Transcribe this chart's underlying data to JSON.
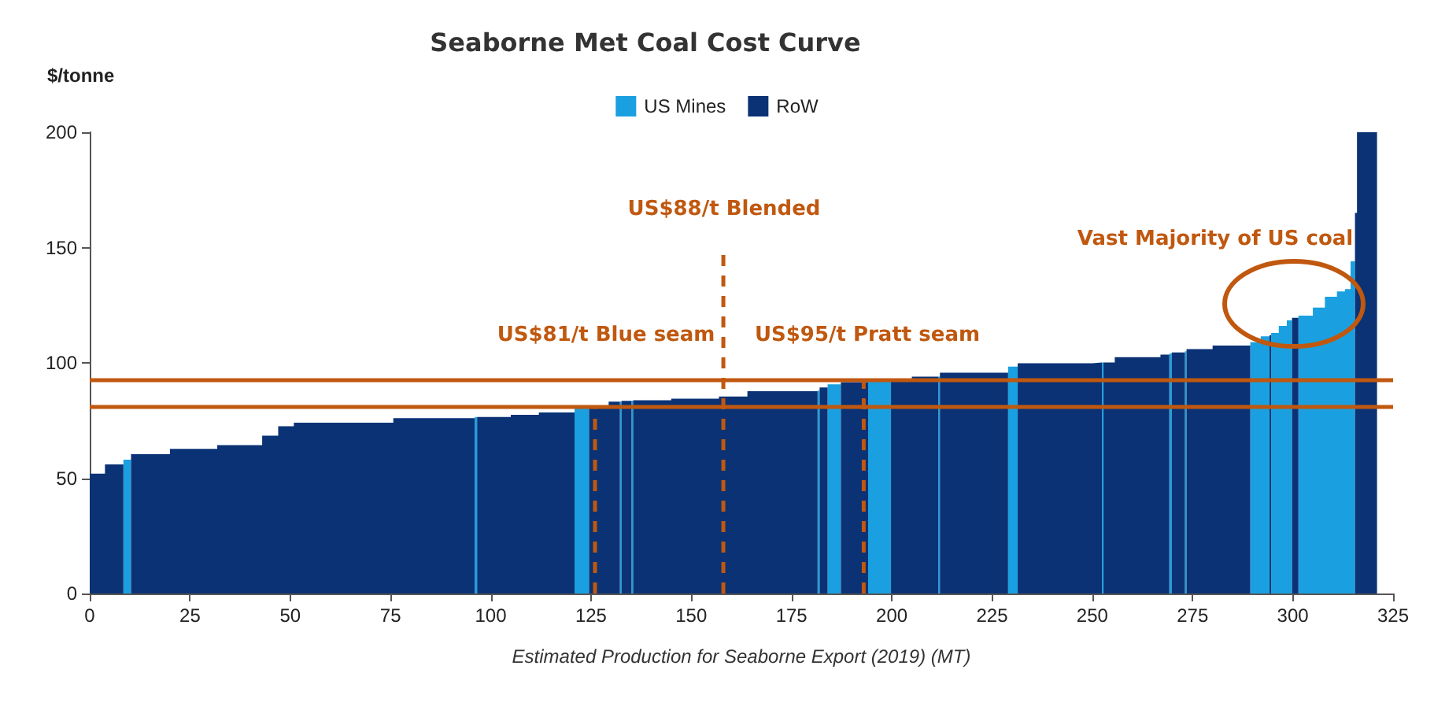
{
  "chart_data": {
    "type": "area",
    "title": "Seaborne Met Coal Cost Curve",
    "xlabel": "Estimated Production for Seaborne Export (2019) (MT)",
    "ylabel": "$/tonne",
    "xlim": [
      0,
      325
    ],
    "xticks": [
      0,
      25,
      50,
      75,
      100,
      125,
      150,
      175,
      200,
      225,
      250,
      275,
      300,
      325
    ],
    "ylim": [
      0,
      200
    ],
    "yticks": [
      0,
      50,
      100,
      150,
      200
    ],
    "grid": false,
    "legend": "top",
    "series": [
      {
        "name": "US Mines",
        "color": "#1aa0e0",
        "x": [
          8.4,
          10.3
        ],
        "values": [
          58,
          58
        ]
      },
      {
        "color": "#1aa0e0",
        "x": [
          96,
          96.6
        ],
        "values": [
          76.5,
          76.5
        ]
      },
      {
        "color": "#1aa0e0",
        "x": [
          120.9,
          124.5
        ],
        "values": [
          80.2,
          80.2
        ]
      },
      {
        "color": "#1aa0e0",
        "x": [
          132.2,
          132.6
        ],
        "values": [
          83.2,
          83.2
        ]
      },
      {
        "color": "#1aa0e0",
        "x": [
          135.1,
          135.5
        ],
        "values": [
          83.6,
          83.6
        ]
      },
      {
        "color": "#1aa0e0",
        "x": [
          181.5,
          182
        ],
        "values": [
          88,
          88
        ]
      },
      {
        "color": "#1aa0e0",
        "x": [
          184,
          187.3
        ],
        "values": [
          90.7,
          90.7
        ]
      },
      {
        "color": "#1aa0e0",
        "x": [
          194.1,
          199.8
        ],
        "values": [
          92.7,
          92.7
        ]
      },
      {
        "color": "#1aa0e0",
        "x": [
          211.6,
          212
        ],
        "values": [
          94,
          94
        ]
      },
      {
        "color": "#1aa0e0",
        "x": [
          229,
          231.4
        ],
        "values": [
          98.4,
          98.4
        ]
      },
      {
        "color": "#1aa0e0",
        "x": [
          252.4,
          252.8
        ],
        "values": [
          100.2,
          100.2
        ]
      },
      {
        "color": "#1aa0e0",
        "x": [
          269.2,
          269.8
        ],
        "values": [
          104,
          104
        ]
      },
      {
        "color": "#1aa0e0",
        "x": [
          273.1,
          273.5
        ],
        "values": [
          105,
          105
        ]
      },
      {
        "color": "#1aa0e0",
        "x": [
          289.4,
          292,
          294.2
        ],
        "values": [
          109,
          111.5,
          111.5
        ]
      },
      {
        "color": "#1aa0e0",
        "x": [
          294.6,
          296.5,
          298.5,
          299.8
        ],
        "values": [
          113,
          116,
          118.4,
          118.4
        ]
      },
      {
        "color": "#1aa0e0",
        "x": [
          301.4,
          305,
          308,
          311,
          313,
          314.4,
          315.5
        ],
        "values": [
          120.5,
          124,
          128.7,
          131,
          132,
          144,
          144
        ]
      },
      {
        "name": "RoW",
        "color": "#0a3275",
        "x": [
          0,
          3.8,
          8.4
        ],
        "values": [
          52,
          56,
          56
        ]
      },
      {
        "color": "#0a3275",
        "x": [
          10.3,
          20,
          31.8,
          43,
          47,
          50.9,
          75.7,
          96
        ],
        "values": [
          60.4,
          62.7,
          64.3,
          68.4,
          72.5,
          74.1,
          76,
          76
        ]
      },
      {
        "color": "#0a3275",
        "x": [
          96.6,
          105,
          112,
          120.9
        ],
        "values": [
          76.5,
          77.5,
          78.5,
          78.5
        ]
      },
      {
        "color": "#0a3275",
        "x": [
          124.5,
          129.4,
          132.2
        ],
        "values": [
          81,
          83.2,
          83.2
        ]
      },
      {
        "color": "#0a3275",
        "x": [
          132.6,
          135.1
        ],
        "values": [
          83.5,
          83.5
        ]
      },
      {
        "color": "#0a3275",
        "x": [
          135.5,
          145,
          156.9,
          164,
          181.5
        ],
        "values": [
          83.8,
          84.5,
          85.4,
          87.7,
          87.7
        ]
      },
      {
        "color": "#0a3275",
        "x": [
          182,
          184
        ],
        "values": [
          89.3,
          89.3
        ]
      },
      {
        "color": "#0a3275",
        "x": [
          187.3,
          194.1
        ],
        "values": [
          91.6,
          91.6
        ]
      },
      {
        "color": "#0a3275",
        "x": [
          199.8,
          205,
          211.6
        ],
        "values": [
          92.7,
          94,
          94
        ]
      },
      {
        "color": "#0a3275",
        "x": [
          212,
          229
        ],
        "values": [
          95.7,
          95.7
        ]
      },
      {
        "color": "#0a3275",
        "x": [
          231.4,
          250,
          252.4
        ],
        "values": [
          99.8,
          100.2,
          100.2
        ]
      },
      {
        "color": "#0a3275",
        "x": [
          252.8,
          255.6,
          267,
          269.2
        ],
        "values": [
          100.2,
          102.5,
          103.6,
          103.6
        ]
      },
      {
        "color": "#0a3275",
        "x": [
          269.8,
          273.1
        ],
        "values": [
          104.5,
          104.5
        ]
      },
      {
        "color": "#0a3275",
        "x": [
          273.5,
          280,
          289.4
        ],
        "values": [
          106,
          107.5,
          107.5
        ]
      },
      {
        "color": "#0a3275",
        "x": [
          294.2,
          294.6
        ],
        "values": [
          112,
          112
        ]
      },
      {
        "color": "#0a3275",
        "x": [
          299.8,
          301.4
        ],
        "values": [
          119.5,
          119.5
        ]
      },
      {
        "color": "#0a3275",
        "x": [
          315.5,
          316,
          321
        ],
        "values": [
          165,
          200,
          200
        ]
      },
      {
        "type": "line",
        "color": "#c0580f",
        "line_style": "dashed",
        "x": [
          126,
          126
        ],
        "values": [
          0,
          80
        ]
      },
      {
        "type": "line",
        "color": "#c0580f",
        "line_style": "dashed",
        "x": [
          158,
          158
        ],
        "values": [
          0,
          149
        ]
      },
      {
        "type": "line",
        "color": "#c0580f",
        "line_style": "dashed",
        "x": [
          193,
          193
        ],
        "values": [
          0,
          92
        ]
      }
    ],
    "ref_lines": [
      {
        "axis": "y",
        "value": 93,
        "color": "#c0580f"
      },
      {
        "axis": "y",
        "value": 81,
        "color": "#c0580f"
      }
    ],
    "annotations": [
      "US$81/t Blue seam",
      "US$88/t Blended",
      "US$95/t Pratt seam",
      "Vast Majority of US coal"
    ]
  }
}
